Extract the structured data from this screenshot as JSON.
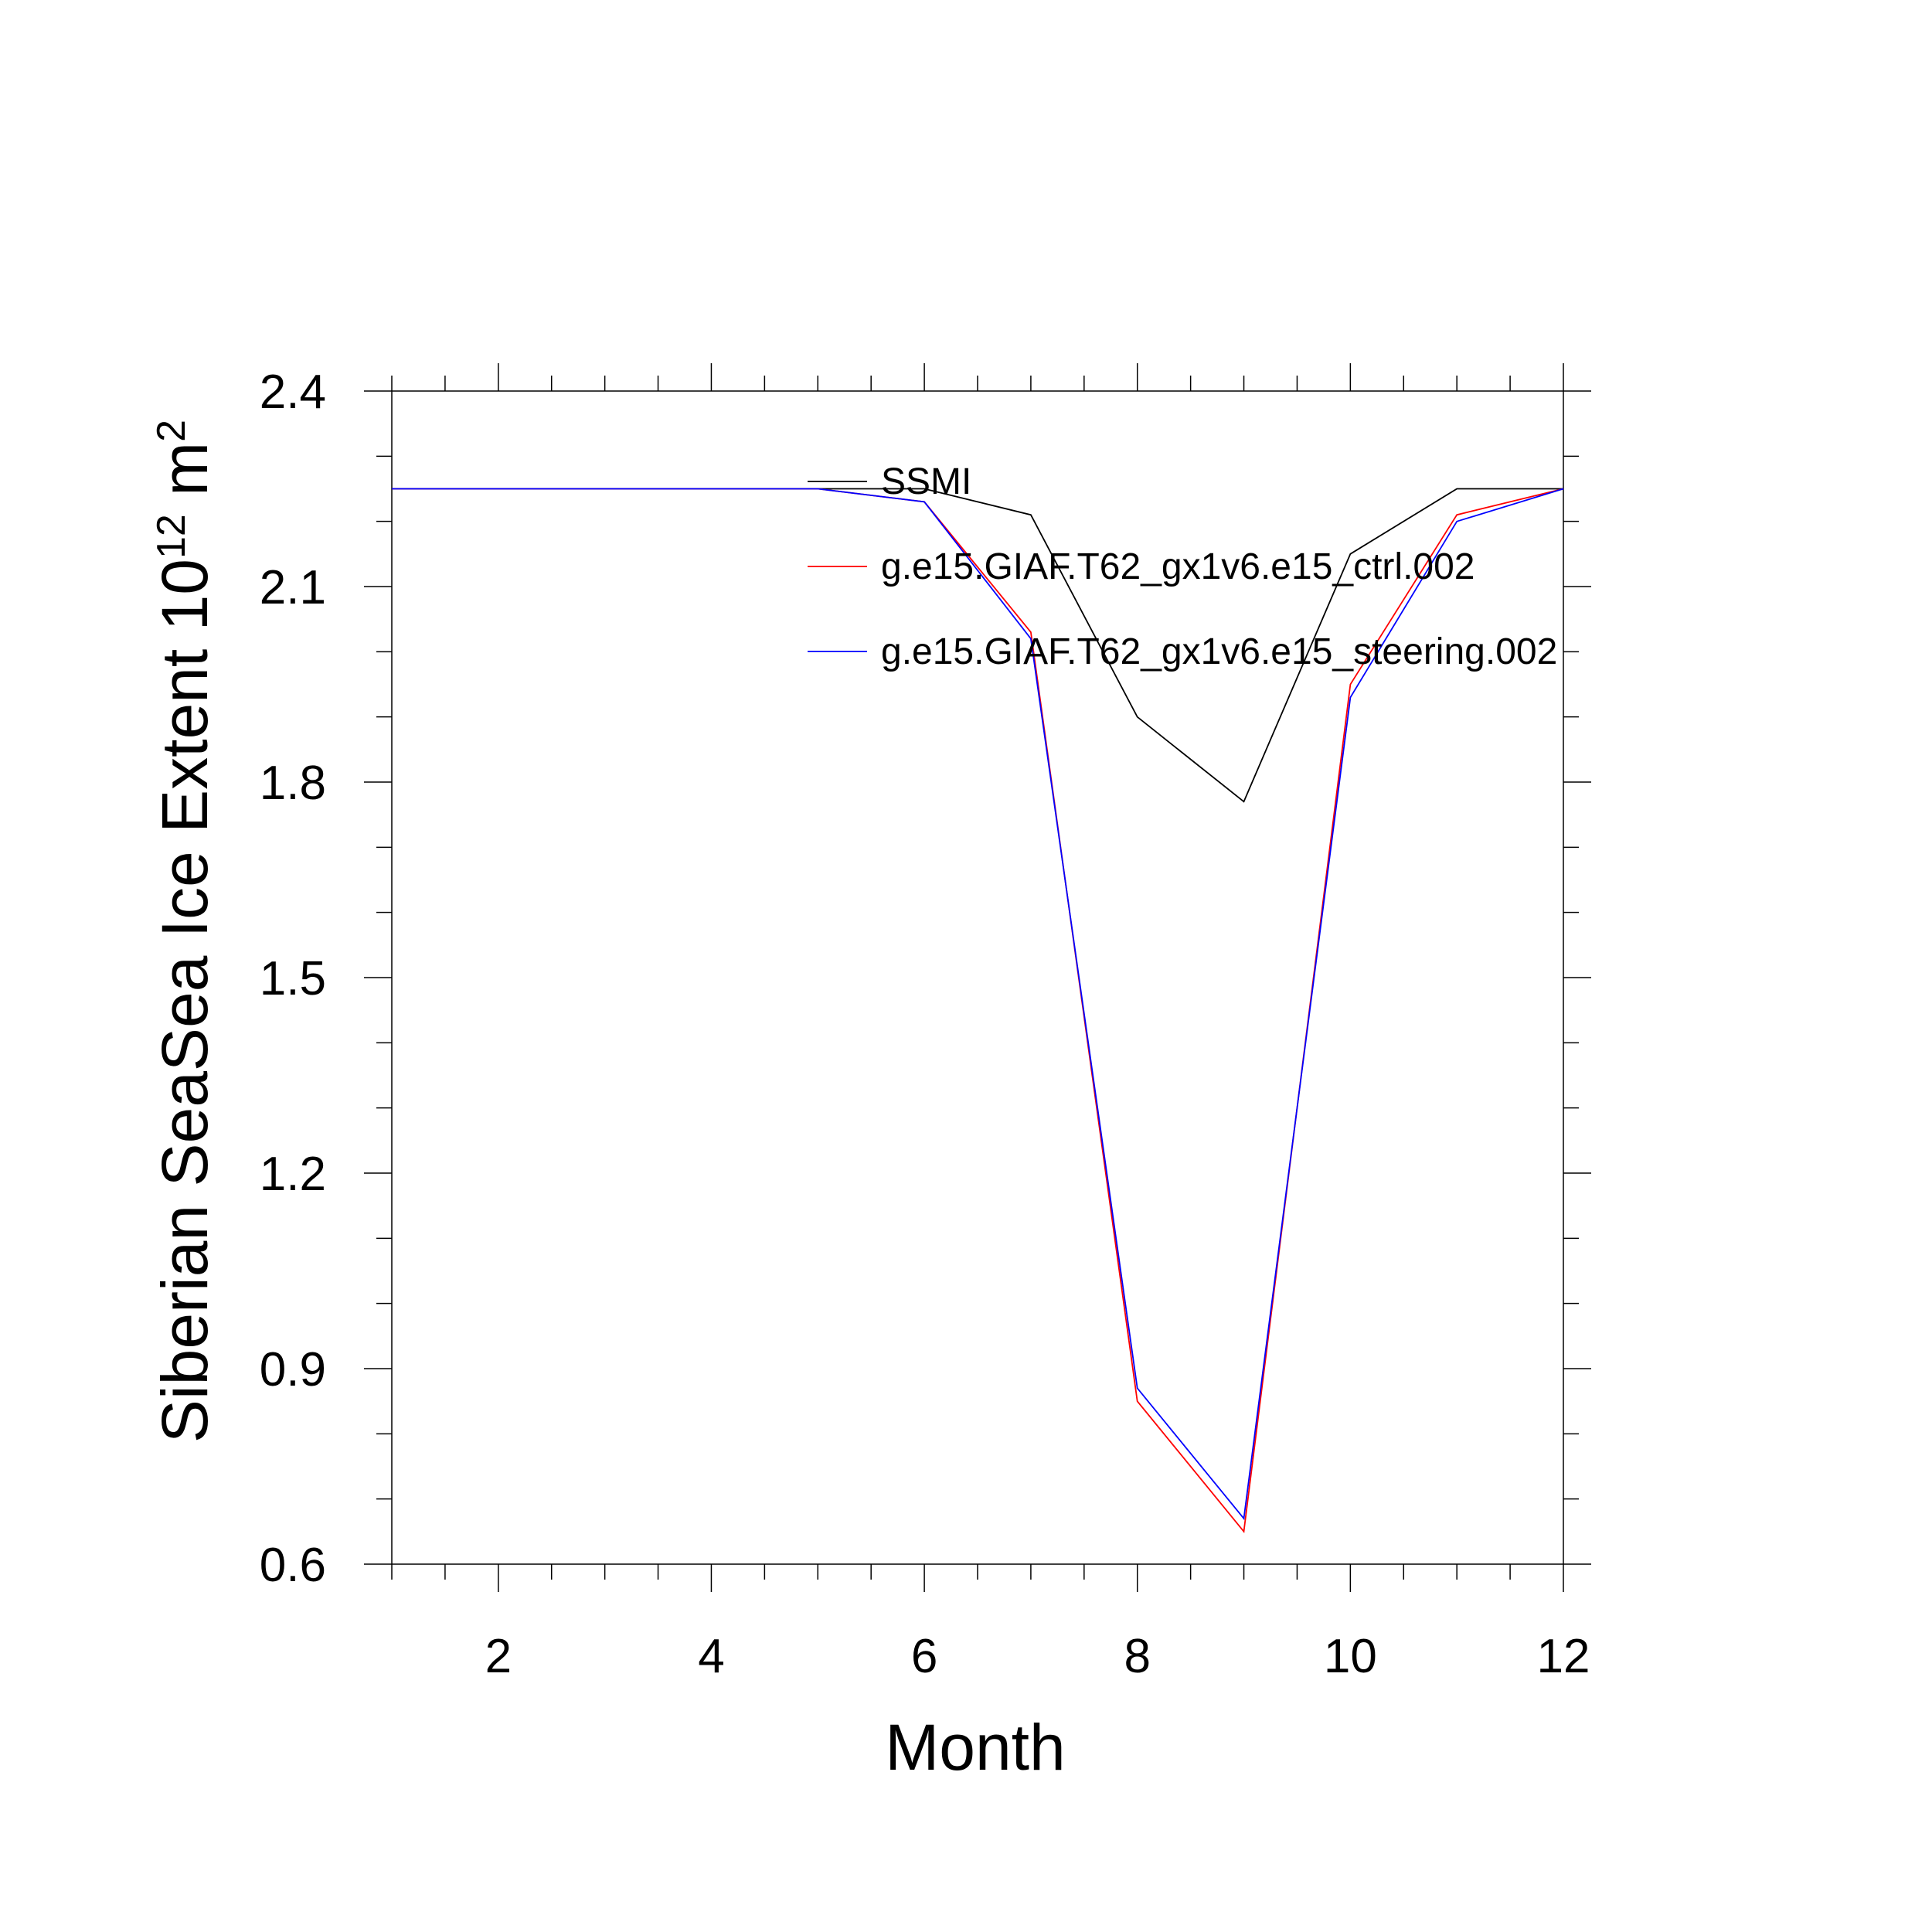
{
  "chart_data": {
    "type": "line",
    "xlabel": "Month",
    "ylabel": "Siberian SeaSea Ice Extent 10",
    "ylabel_exp": "12",
    "ylabel_unit": " m",
    "ylabel_unit_exp": "2",
    "xlim": [
      1,
      12
    ],
    "ylim": [
      0.6,
      2.4
    ],
    "xticks": [
      "2",
      "4",
      "6",
      "8",
      "10",
      "12"
    ],
    "xtick_values": [
      2,
      4,
      6,
      8,
      10,
      12
    ],
    "yticks": [
      "0.6",
      "0.9",
      "1.2",
      "1.5",
      "1.8",
      "2.1",
      "2.4"
    ],
    "ytick_values": [
      0.6,
      0.9,
      1.2,
      1.5,
      1.8,
      2.1,
      2.4
    ],
    "grid": false,
    "legend_position": "top-right",
    "x": [
      1,
      2,
      3,
      4,
      5,
      6,
      7,
      8,
      9,
      10,
      11,
      12
    ],
    "series": [
      {
        "name": "SSMI",
        "color": "#000000",
        "values": [
          2.25,
          2.25,
          2.25,
          2.25,
          2.25,
          2.25,
          2.21,
          1.9,
          1.77,
          2.15,
          2.25,
          2.25
        ]
      },
      {
        "name": "g.e15.GIAF.T62_gx1v6.e15_ctrl.002",
        "color": "#ff0000",
        "values": [
          2.25,
          2.25,
          2.25,
          2.25,
          2.25,
          2.23,
          2.03,
          0.85,
          0.65,
          1.95,
          2.21,
          2.25
        ]
      },
      {
        "name": "g.e15.GIAF.T62_gx1v6.e15_steering.002",
        "color": "#0000ff",
        "values": [
          2.25,
          2.25,
          2.25,
          2.25,
          2.25,
          2.23,
          2.02,
          0.87,
          0.67,
          1.93,
          2.2,
          2.25
        ]
      }
    ]
  }
}
